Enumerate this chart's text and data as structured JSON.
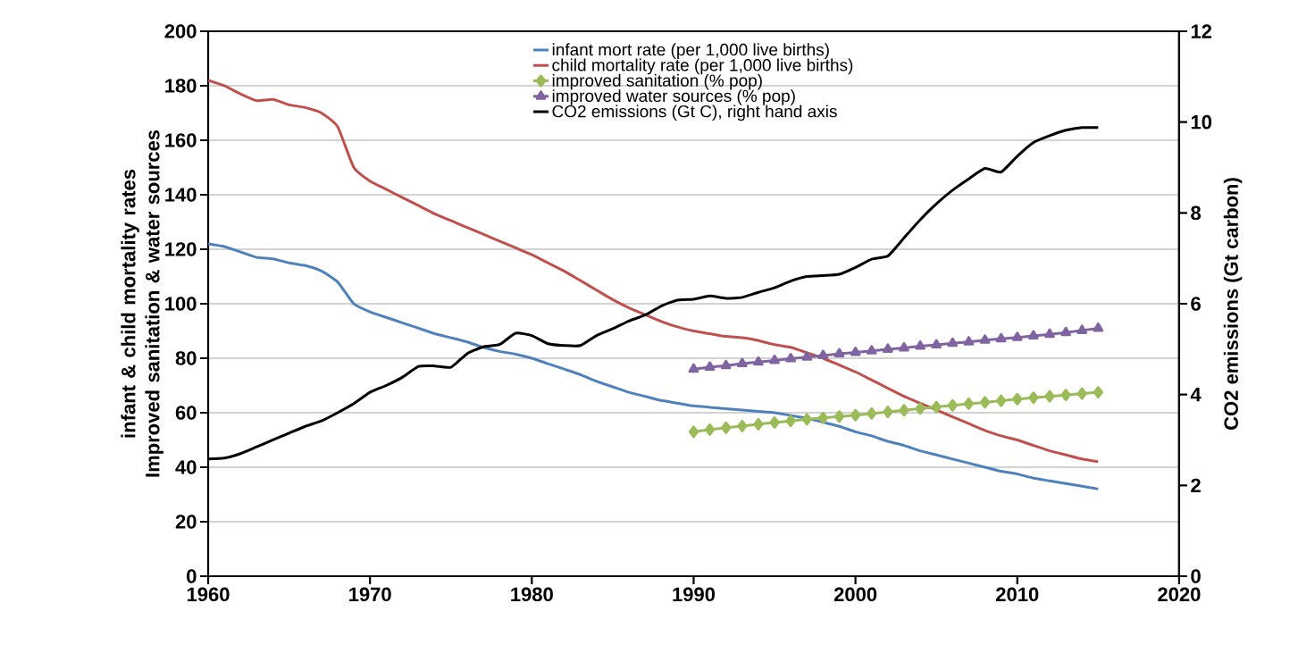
{
  "chart_data": {
    "type": "line",
    "ylabel": "infant & child mortality rates Improved sanitation & water sources",
    "y2label": "CO2 emissions (Gt carbon)",
    "xlim": [
      1960,
      2020
    ],
    "xticks": [
      1960,
      1970,
      1980,
      1990,
      2000,
      2010,
      2020
    ],
    "ylim": [
      0,
      200
    ],
    "yticks": [
      0,
      20,
      40,
      60,
      80,
      100,
      120,
      140,
      160,
      180,
      200
    ],
    "y2lim": [
      0,
      12
    ],
    "y2ticks": [
      0,
      2,
      4,
      6,
      8,
      10,
      12
    ],
    "grid": "y",
    "legend": "top",
    "series": [
      {
        "name": "infant mort rate (per 1,000 live births)",
        "color": "#4f81bd",
        "x": [
          1960,
          1961,
          1962,
          1963,
          1964,
          1965,
          1966,
          1967,
          1968,
          1969,
          1970,
          1971,
          1972,
          1973,
          1974,
          1975,
          1976,
          1977,
          1978,
          1979,
          1980,
          1981,
          1982,
          1983,
          1984,
          1985,
          1986,
          1987,
          1988,
          1989,
          1990,
          1991,
          1992,
          1993,
          1994,
          1995,
          1996,
          1997,
          1998,
          1999,
          2000,
          2001,
          2002,
          2003,
          2004,
          2005,
          2006,
          2007,
          2008,
          2009,
          2010,
          2011,
          2012,
          2013,
          2014,
          2015
        ],
        "values": [
          122,
          121,
          119,
          117,
          116.5,
          115,
          114,
          112,
          108,
          100,
          97,
          95,
          93,
          91,
          89,
          87.5,
          86,
          84,
          82.5,
          81.5,
          80,
          78,
          76,
          74,
          71.5,
          69.5,
          67.5,
          66,
          64.5,
          63.5,
          62.5,
          62,
          61.5,
          61,
          60.5,
          60,
          59,
          58,
          56.5,
          55,
          53,
          51.5,
          49.5,
          48,
          46,
          44.5,
          43,
          41.5,
          40,
          38.5,
          37.5,
          36,
          35,
          34,
          33,
          32
        ]
      },
      {
        "name": "child mortality rate (per 1,000 live births)",
        "color": "#c0504d",
        "x": [
          1960,
          1961,
          1962,
          1963,
          1964,
          1965,
          1966,
          1967,
          1968,
          1969,
          1970,
          1971,
          1972,
          1973,
          1974,
          1975,
          1976,
          1977,
          1978,
          1979,
          1980,
          1981,
          1982,
          1983,
          1984,
          1985,
          1986,
          1987,
          1988,
          1989,
          1990,
          1991,
          1992,
          1993,
          1994,
          1995,
          1996,
          1997,
          1998,
          1999,
          2000,
          2001,
          2002,
          2003,
          2004,
          2005,
          2006,
          2007,
          2008,
          2009,
          2010,
          2011,
          2012,
          2013,
          2014,
          2015
        ],
        "values": [
          182,
          180,
          177,
          174.5,
          175,
          173,
          172,
          170,
          165,
          150,
          145,
          142,
          139,
          136,
          133,
          130.5,
          128,
          125.5,
          123,
          120.5,
          118,
          115,
          112,
          108.5,
          105,
          101.5,
          98.5,
          96,
          93.5,
          91.5,
          90,
          89,
          88,
          87.5,
          86.5,
          85,
          84,
          82,
          80,
          77.5,
          75,
          72,
          69,
          66,
          63.5,
          61,
          58.5,
          56,
          53.5,
          51.5,
          50,
          48,
          46,
          44.5,
          43,
          42
        ]
      },
      {
        "name": "improved sanitation (% pop)",
        "color": "#9bbb59",
        "marker": "diamond",
        "x": [
          1990,
          1991,
          1992,
          1993,
          1994,
          1995,
          1996,
          1997,
          1998,
          1999,
          2000,
          2001,
          2002,
          2003,
          2004,
          2005,
          2006,
          2007,
          2008,
          2009,
          2010,
          2011,
          2012,
          2013,
          2014,
          2015
        ],
        "values": [
          53,
          53.8,
          54.5,
          55.1,
          55.8,
          56.4,
          57,
          57.6,
          58.1,
          58.6,
          59.1,
          59.7,
          60.3,
          60.9,
          61.5,
          62.1,
          62.7,
          63.3,
          63.8,
          64.4,
          65,
          65.5,
          66,
          66.5,
          67,
          67.5
        ]
      },
      {
        "name": "improved water sources (% pop)",
        "color": "#8064a2",
        "marker": "triangle",
        "x": [
          1990,
          1991,
          1992,
          1993,
          1994,
          1995,
          1996,
          1997,
          1998,
          1999,
          2000,
          2001,
          2002,
          2003,
          2004,
          2005,
          2006,
          2007,
          2008,
          2009,
          2010,
          2011,
          2012,
          2013,
          2014,
          2015
        ],
        "values": [
          76,
          76.7,
          77.3,
          78,
          78.6,
          79.2,
          79.8,
          80.4,
          81,
          81.6,
          82.1,
          82.7,
          83.3,
          83.8,
          84.4,
          84.9,
          85.5,
          86,
          86.6,
          87.1,
          87.6,
          88.2,
          88.8,
          89.4,
          90.2,
          91
        ]
      },
      {
        "name": "CO2 emissions (Gt C), right hand axis",
        "color": "#000000",
        "axis": "y2",
        "x": [
          1960,
          1961,
          1962,
          1963,
          1964,
          1965,
          1966,
          1967,
          1968,
          1969,
          1970,
          1971,
          1972,
          1973,
          1974,
          1975,
          1976,
          1977,
          1978,
          1979,
          1980,
          1981,
          1982,
          1983,
          1984,
          1985,
          1986,
          1987,
          1988,
          1989,
          1990,
          1991,
          1992,
          1993,
          1994,
          1995,
          1996,
          1997,
          1998,
          1999,
          2000,
          2001,
          2002,
          2003,
          2004,
          2005,
          2006,
          2007,
          2008,
          2009,
          2010,
          2011,
          2012,
          2013,
          2014,
          2015
        ],
        "values": [
          2.58,
          2.6,
          2.7,
          2.85,
          3.0,
          3.15,
          3.3,
          3.42,
          3.6,
          3.8,
          4.05,
          4.2,
          4.38,
          4.62,
          4.63,
          4.6,
          4.9,
          5.05,
          5.1,
          5.35,
          5.3,
          5.12,
          5.08,
          5.08,
          5.3,
          5.45,
          5.62,
          5.75,
          5.95,
          6.08,
          6.1,
          6.17,
          6.12,
          6.14,
          6.25,
          6.35,
          6.5,
          6.6,
          6.62,
          6.65,
          6.8,
          6.98,
          7.05,
          7.45,
          7.85,
          8.2,
          8.5,
          8.75,
          8.98,
          8.9,
          9.25,
          9.55,
          9.7,
          9.82,
          9.88,
          9.88
        ]
      }
    ]
  }
}
